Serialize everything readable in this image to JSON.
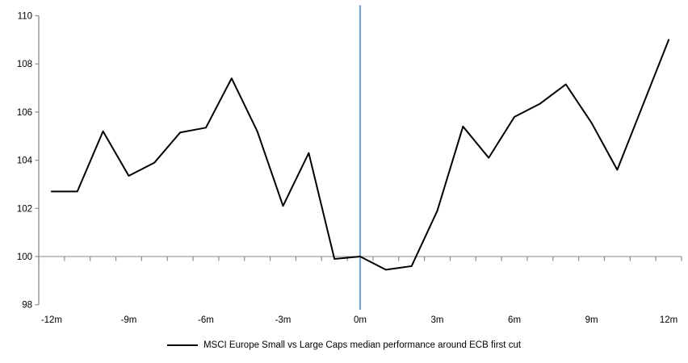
{
  "chart_data": {
    "type": "line",
    "title": "",
    "xlabel": "",
    "ylabel": "",
    "x_months": [
      -12,
      -11,
      -10,
      -9,
      -8,
      -7,
      -6,
      -5,
      -4,
      -3,
      -2,
      -1,
      0,
      1,
      2,
      3,
      4,
      5,
      6,
      7,
      8,
      9,
      10,
      11,
      12
    ],
    "series": [
      {
        "name": "MSCI Europe Small vs Large Caps median performance around ECB first cut",
        "values": [
          102.7,
          102.7,
          105.2,
          103.35,
          103.9,
          105.15,
          105.35,
          107.4,
          105.2,
          102.1,
          104.3,
          99.9,
          100.0,
          99.45,
          99.6,
          101.9,
          105.4,
          104.1,
          105.8,
          106.35,
          107.15,
          105.55,
          103.6,
          106.3,
          109.0
        ]
      }
    ],
    "ylim": [
      98,
      110
    ],
    "y_ticks": [
      98,
      100,
      102,
      104,
      106,
      108,
      110
    ],
    "x_tick_labels": [
      {
        "month": -12,
        "label": "-12m"
      },
      {
        "month": -9,
        "label": "-9m"
      },
      {
        "month": -6,
        "label": "-6m"
      },
      {
        "month": -3,
        "label": "-3m"
      },
      {
        "month": 0,
        "label": "0m"
      },
      {
        "month": 3,
        "label": "3m"
      },
      {
        "month": 6,
        "label": "6m"
      },
      {
        "month": 9,
        "label": "9m"
      },
      {
        "month": 12,
        "label": "12m"
      }
    ],
    "baseline_value": 100,
    "event_line_month": 0,
    "grid": "off",
    "legend_position": "bottom-center",
    "legend_label": "MSCI Europe Small vs Large Caps median performance around ECB first cut",
    "colors": {
      "series_line": "#000000",
      "event_line": "#7BA2CC",
      "axis_line": "#8C8C8C",
      "baseline_line": "#A0A0A0",
      "tick": "#8C8C8C",
      "label_text": "#000000",
      "background": "#FFFFFF"
    }
  }
}
